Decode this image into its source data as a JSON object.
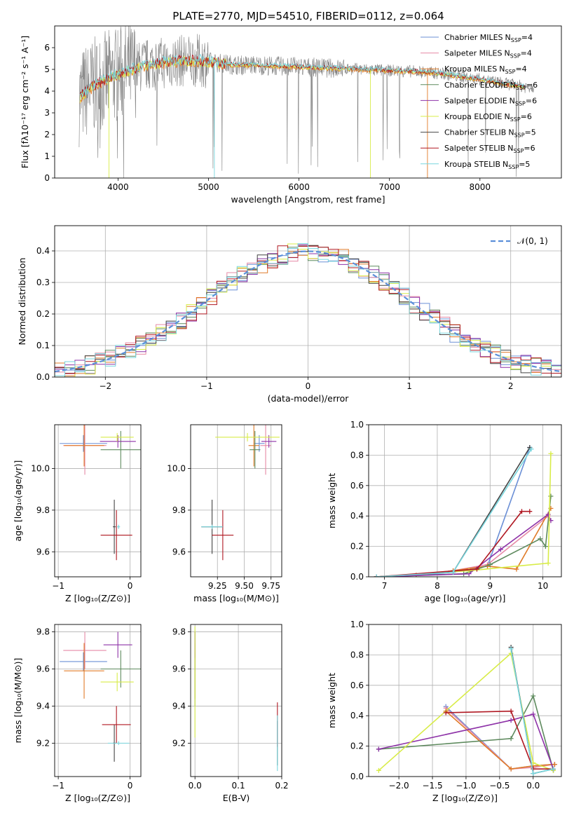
{
  "figure": {
    "title": "PLATE=2770, MJD=54510, FIBERID=0112, z=0.064"
  },
  "colors": {
    "chabrier_miles": "#6b8fd6",
    "salpeter_miles": "#e68aa6",
    "kroupa_miles": "#e07b28",
    "chabrier_elodie": "#5e8a5e",
    "salpeter_elodie": "#8e33a8",
    "kroupa_elodie": "#d8ec48",
    "chabrier_stelib": "#444444",
    "salpeter_stelib": "#b01822",
    "kroupa_stelib": "#78d6de",
    "data": "#808080",
    "gaussian": "#5b8fd9"
  },
  "chart_data": [
    {
      "type": "line",
      "title": "PLATE=2770, MJD=54510, FIBERID=0112, z=0.064",
      "xlabel": "wavelength [Angstrom, rest frame]",
      "ylabel": "Flux [fλ10⁻¹⁷ erg cm⁻² s⁻¹ A⁻¹]",
      "xlim": [
        3300,
        8900
      ],
      "ylim": [
        0,
        7
      ],
      "xticks": [
        "4000",
        "5000",
        "6000",
        "7000",
        "8000"
      ],
      "yticks": [
        "0",
        "1",
        "2",
        "3",
        "4",
        "5",
        "6"
      ],
      "grid": false,
      "legend_position": "right",
      "legend": [
        {
          "name": "Chabrier MILES",
          "nssp": "N",
          "sub": "SSP",
          "val": "=4",
          "color_key": "chabrier_miles"
        },
        {
          "name": "Salpeter MILES",
          "nssp": "N",
          "sub": "SSP",
          "val": "=4",
          "color_key": "salpeter_miles"
        },
        {
          "name": "Kroupa MILES",
          "nssp": "N",
          "sub": "SSP",
          "val": "=4",
          "color_key": "kroupa_miles"
        },
        {
          "name": "Chabrier ELODIE",
          "nssp": "N",
          "sub": "SSP",
          "val": "=6",
          "color_key": "chabrier_elodie"
        },
        {
          "name": "Salpeter ELODIE",
          "nssp": "N",
          "sub": "SSP",
          "val": "=6",
          "color_key": "salpeter_elodie"
        },
        {
          "name": "Kroupa ELODIE",
          "nssp": "N",
          "sub": "SSP",
          "val": "=6",
          "color_key": "kroupa_elodie"
        },
        {
          "name": "Chabrier STELIB",
          "nssp": "N",
          "sub": "SSP",
          "val": "=5",
          "color_key": "chabrier_stelib"
        },
        {
          "name": "Salpeter STELIB",
          "nssp": "N",
          "sub": "SSP",
          "val": "=6",
          "color_key": "salpeter_stelib"
        },
        {
          "name": "Kroupa STELIB",
          "nssp": "N",
          "sub": "SSP",
          "val": "=5",
          "color_key": "kroupa_stelib"
        }
      ],
      "continuum": {
        "x": [
          3580,
          3650,
          3800,
          3950,
          4100,
          4300,
          4500,
          4700,
          4900,
          5100,
          5300,
          5500,
          5800,
          6100,
          6400,
          6700,
          7000,
          7300,
          7600,
          7900,
          8200,
          8500
        ],
        "y": [
          3.7,
          4.0,
          4.4,
          4.7,
          4.9,
          5.2,
          5.3,
          5.4,
          5.4,
          5.3,
          5.2,
          5.2,
          5.15,
          5.1,
          5.05,
          5.0,
          4.95,
          4.9,
          4.8,
          4.6,
          4.4,
          4.2
        ]
      }
    },
    {
      "type": "line",
      "xlabel": "(data-model)/error",
      "ylabel": "Normed distribution",
      "xlim": [
        -2.5,
        2.5
      ],
      "ylim": [
        0,
        0.48
      ],
      "xticks": [
        "−2",
        "−1",
        "0",
        "1",
        "2"
      ],
      "yticks": [
        "0.0",
        "0.1",
        "0.2",
        "0.3",
        "0.4"
      ],
      "grid": true,
      "legend_position": "top-right",
      "gaussian_label": "𝒩(0, 1)",
      "gaussian": {
        "mean": 0,
        "sigma": 1
      }
    },
    {
      "type": "scatter",
      "xlabel": "Z [log₁₀(Z/Z⊙)]",
      "ylabel": "age  [log₁₀(age/yr)]",
      "xlim": [
        -1.05,
        0.15
      ],
      "ylim": [
        9.48,
        10.21
      ],
      "xticks": [
        "−1",
        "0"
      ],
      "yticks": [
        "9.6",
        "9.8",
        "10.0"
      ],
      "grid": true,
      "points": [
        {
          "x": -0.65,
          "y": 10.12,
          "xerr": 0.33,
          "yerr": 0.04,
          "color_key": "chabrier_miles"
        },
        {
          "x": -0.63,
          "y": 10.11,
          "xerr": 0.3,
          "yerr": 0.14,
          "color_key": "salpeter_miles"
        },
        {
          "x": -0.64,
          "y": 10.11,
          "xerr": 0.28,
          "yerr": 0.1,
          "color_key": "kroupa_miles"
        },
        {
          "x": -0.13,
          "y": 10.09,
          "xerr": 0.28,
          "yerr": 0.09,
          "color_key": "chabrier_elodie"
        },
        {
          "x": -0.17,
          "y": 10.13,
          "xerr": 0.25,
          "yerr": 0.03,
          "color_key": "salpeter_elodie"
        },
        {
          "x": -0.18,
          "y": 10.15,
          "xerr": 0.23,
          "yerr": 0.02,
          "color_key": "kroupa_elodie"
        },
        {
          "x": -0.22,
          "y": 9.72,
          "xerr": 0.02,
          "yerr": 0.13,
          "color_key": "chabrier_stelib"
        },
        {
          "x": -0.19,
          "y": 9.68,
          "xerr": 0.22,
          "yerr": 0.12,
          "color_key": "salpeter_stelib"
        },
        {
          "x": -0.16,
          "y": 9.72,
          "xerr": 0.02,
          "yerr": 0.01,
          "color_key": "kroupa_stelib"
        }
      ]
    },
    {
      "type": "scatter",
      "xlabel": "mass [log₁₀(M/M⊙)]",
      "ylabel": "",
      "xlim": [
        9.0,
        9.85
      ],
      "ylim": [
        9.48,
        10.21
      ],
      "xticks": [
        "9.25",
        "9.50",
        "9.75"
      ],
      "yticks": [
        "9.6",
        "9.8",
        "10.0"
      ],
      "grid": true,
      "points": [
        {
          "x": 9.64,
          "y": 10.12,
          "xerr": 0.05,
          "yerr": 0.04,
          "color_key": "chabrier_miles"
        },
        {
          "x": 9.7,
          "y": 10.11,
          "xerr": 0.05,
          "yerr": 0.14,
          "color_key": "salpeter_miles"
        },
        {
          "x": 9.59,
          "y": 10.11,
          "xerr": 0.05,
          "yerr": 0.1,
          "color_key": "kroupa_miles"
        },
        {
          "x": 9.6,
          "y": 10.09,
          "xerr": 0.05,
          "yerr": 0.09,
          "color_key": "chabrier_elodie"
        },
        {
          "x": 9.73,
          "y": 10.13,
          "xerr": 0.07,
          "yerr": 0.03,
          "color_key": "salpeter_elodie"
        },
        {
          "x": 9.53,
          "y": 10.15,
          "xerr": 0.3,
          "yerr": 0.02,
          "color_key": "kroupa_elodie"
        },
        {
          "x": 9.2,
          "y": 9.72,
          "xerr": 0.1,
          "yerr": 0.13,
          "color_key": "chabrier_stelib"
        },
        {
          "x": 9.3,
          "y": 9.68,
          "xerr": 0.1,
          "yerr": 0.12,
          "color_key": "salpeter_stelib"
        },
        {
          "x": 9.2,
          "y": 9.72,
          "xerr": 0.1,
          "yerr": 0.01,
          "color_key": "kroupa_stelib"
        }
      ]
    },
    {
      "type": "line",
      "xlabel": "age  [log₁₀(age/yr)]",
      "ylabel": "mass weight",
      "xlim": [
        6.7,
        10.35
      ],
      "ylim": [
        0,
        1.0
      ],
      "xticks": [
        "7",
        "8",
        "9",
        "10"
      ],
      "yticks": [
        "0.0",
        "0.2",
        "0.4",
        "0.6",
        "0.8",
        "1.0"
      ],
      "grid": true,
      "series": [
        {
          "color_key": "chabrier_miles",
          "x": [
            6.85,
            7.6,
            8.3,
            8.95,
            9.75
          ],
          "y": [
            0.0,
            0.01,
            0.03,
            0.07,
            0.85
          ]
        },
        {
          "color_key": "salpeter_miles",
          "x": [
            6.85,
            7.6,
            8.3,
            8.95,
            10.1
          ],
          "y": [
            0.0,
            0.01,
            0.04,
            0.08,
            0.4
          ]
        },
        {
          "color_key": "kroupa_miles",
          "x": [
            6.85,
            7.6,
            8.3,
            8.95,
            9.5,
            10.15
          ],
          "y": [
            0.0,
            0.01,
            0.04,
            0.07,
            0.05,
            0.45
          ]
        },
        {
          "color_key": "chabrier_elodie",
          "x": [
            6.85,
            8.5,
            9.0,
            9.95,
            10.05,
            10.15
          ],
          "y": [
            0.0,
            0.02,
            0.08,
            0.25,
            0.2,
            0.53
          ]
        },
        {
          "color_key": "salpeter_elodie",
          "x": [
            6.85,
            8.6,
            9.2,
            10.1,
            10.15
          ],
          "y": [
            0.0,
            0.02,
            0.18,
            0.41,
            0.37
          ]
        },
        {
          "color_key": "kroupa_elodie",
          "x": [
            6.85,
            8.6,
            10.1,
            10.15
          ],
          "y": [
            0.0,
            0.04,
            0.09,
            0.81
          ]
        },
        {
          "color_key": "chabrier_stelib",
          "x": [
            6.85,
            8.3,
            9.75
          ],
          "y": [
            0.0,
            0.03,
            0.85
          ]
        },
        {
          "color_key": "salpeter_stelib",
          "x": [
            6.85,
            8.75,
            9.6,
            9.75
          ],
          "y": [
            0.0,
            0.05,
            0.43,
            0.43
          ]
        },
        {
          "color_key": "kroupa_stelib",
          "x": [
            6.85,
            8.3,
            9.78
          ],
          "y": [
            0.0,
            0.03,
            0.84
          ]
        }
      ]
    },
    {
      "type": "scatter",
      "xlabel": "Z [log₁₀(Z/Z⊙)]",
      "ylabel": "mass [log₁₀(M/M⊙)]",
      "xlim": [
        -1.05,
        0.15
      ],
      "ylim": [
        9.02,
        9.84
      ],
      "xticks": [
        "−1",
        "0"
      ],
      "yticks": [
        "9.2",
        "9.4",
        "9.6",
        "9.8"
      ],
      "grid": true,
      "points": [
        {
          "x": -0.65,
          "y": 9.64,
          "xerr": 0.33,
          "yerr": 0.05,
          "color_key": "chabrier_miles"
        },
        {
          "x": -0.63,
          "y": 9.7,
          "xerr": 0.3,
          "yerr": 0.1,
          "color_key": "salpeter_miles"
        },
        {
          "x": -0.64,
          "y": 9.59,
          "xerr": 0.28,
          "yerr": 0.15,
          "color_key": "kroupa_miles"
        },
        {
          "x": -0.13,
          "y": 9.6,
          "xerr": 0.28,
          "yerr": 0.1,
          "color_key": "chabrier_elodie"
        },
        {
          "x": -0.17,
          "y": 9.73,
          "xerr": 0.2,
          "yerr": 0.07,
          "color_key": "salpeter_elodie"
        },
        {
          "x": -0.18,
          "y": 9.53,
          "xerr": 0.23,
          "yerr": 0.05,
          "color_key": "kroupa_elodie"
        },
        {
          "x": -0.22,
          "y": 9.2,
          "xerr": 0.02,
          "yerr": 0.1,
          "color_key": "chabrier_stelib"
        },
        {
          "x": -0.19,
          "y": 9.3,
          "xerr": 0.2,
          "yerr": 0.1,
          "color_key": "salpeter_stelib"
        },
        {
          "x": -0.16,
          "y": 9.2,
          "xerr": 0.15,
          "yerr": 0.01,
          "color_key": "kroupa_stelib"
        }
      ]
    },
    {
      "type": "scatter",
      "xlabel": "E(B-V)",
      "ylabel": "",
      "xlim": [
        -0.01,
        0.2
      ],
      "ylim": [
        9.02,
        9.84
      ],
      "xticks": [
        "0.0",
        "0.1",
        "0.2"
      ],
      "yticks": [
        "9.2",
        "9.4",
        "9.6",
        "9.8"
      ],
      "grid": true,
      "points": [
        {
          "x": 0.0,
          "y": 9.64,
          "yerr": 0.05,
          "color_key": "chabrier_miles"
        },
        {
          "x": 0.0,
          "y": 9.7,
          "yerr": 0.1,
          "color_key": "salpeter_miles"
        },
        {
          "x": 0.0,
          "y": 9.59,
          "yerr": 0.15,
          "color_key": "kroupa_miles"
        },
        {
          "x": 0.0,
          "y": 9.6,
          "yerr": 0.2,
          "color_key": "chabrier_elodie"
        },
        {
          "x": 0.0,
          "y": 9.73,
          "yerr": 0.07,
          "color_key": "salpeter_elodie"
        },
        {
          "x": 0.0,
          "y": 9.53,
          "yerr": 0.3,
          "color_key": "kroupa_elodie"
        },
        {
          "x": 0.19,
          "y": 9.2,
          "yerr": 0.12,
          "color_key": "chabrier_stelib"
        },
        {
          "x": 0.19,
          "y": 9.3,
          "yerr": 0.12,
          "color_key": "salpeter_stelib"
        },
        {
          "x": 0.19,
          "y": 9.2,
          "yerr": 0.15,
          "color_key": "kroupa_stelib"
        }
      ]
    },
    {
      "type": "line",
      "xlabel": "Z [log₁₀(Z/Z⊙)]",
      "ylabel": "mass weight",
      "xlim": [
        -2.45,
        0.42
      ],
      "ylim": [
        0,
        1.0
      ],
      "xticks": [
        "−2.0",
        "−1.5",
        "−1.0",
        "−0.5",
        "0.0"
      ],
      "yticks": [
        "0.0",
        "0.2",
        "0.4",
        "0.6",
        "0.8",
        "1.0"
      ],
      "grid": true,
      "series": [
        {
          "color_key": "chabrier_miles",
          "x": [
            -1.3,
            -0.33,
            0.0,
            0.32
          ],
          "y": [
            0.46,
            0.05,
            0.07,
            0.08
          ]
        },
        {
          "color_key": "salpeter_miles",
          "x": [
            -1.3,
            -0.33,
            0.0,
            0.32
          ],
          "y": [
            0.45,
            0.05,
            0.06,
            0.08
          ]
        },
        {
          "color_key": "kroupa_miles",
          "x": [
            -1.3,
            -0.33,
            0.0,
            0.32
          ],
          "y": [
            0.43,
            0.05,
            0.07,
            0.08
          ]
        },
        {
          "color_key": "chabrier_elodie",
          "x": [
            -2.3,
            -0.33,
            0.0,
            0.3
          ],
          "y": [
            0.18,
            0.25,
            0.53,
            0.04
          ]
        },
        {
          "color_key": "salpeter_elodie",
          "x": [
            -2.3,
            -0.33,
            0.0,
            0.3
          ],
          "y": [
            0.18,
            0.37,
            0.41,
            0.05
          ]
        },
        {
          "color_key": "kroupa_elodie",
          "x": [
            -2.3,
            -0.33,
            0.0,
            0.3
          ],
          "y": [
            0.04,
            0.81,
            0.09,
            0.04
          ]
        },
        {
          "color_key": "chabrier_stelib",
          "x": [
            -0.33,
            0.0,
            0.3
          ],
          "y": [
            0.85,
            0.02,
            0.05
          ]
        },
        {
          "color_key": "salpeter_stelib",
          "x": [
            -1.3,
            -0.33,
            0.0,
            0.3
          ],
          "y": [
            0.42,
            0.43,
            0.05,
            0.05
          ]
        },
        {
          "color_key": "kroupa_stelib",
          "x": [
            -0.33,
            0.0,
            0.3
          ],
          "y": [
            0.84,
            0.02,
            0.05
          ]
        }
      ]
    }
  ]
}
